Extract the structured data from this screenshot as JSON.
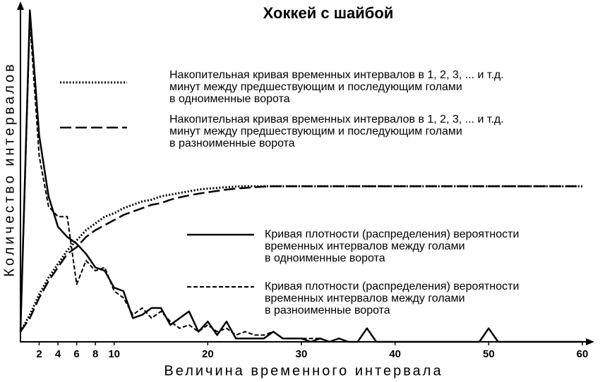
{
  "chart_data": {
    "type": "line",
    "title": "Хоккей с шайбой",
    "x_label": "Величина временного интервала",
    "y_label": "Количество интервалов",
    "xlim": [
      0,
      60
    ],
    "ylim": [
      0,
      100
    ],
    "xticks": [
      2,
      4,
      6,
      8,
      10,
      20,
      30,
      40,
      50,
      60
    ],
    "x": [
      0,
      1,
      2,
      3,
      4,
      5,
      6,
      7,
      8,
      9,
      10,
      11,
      12,
      13,
      14,
      15,
      16,
      17,
      18,
      19,
      20,
      21,
      22,
      23,
      24,
      25,
      26,
      27,
      28,
      29,
      30,
      31,
      32,
      33,
      34,
      35,
      36,
      37,
      38,
      39,
      40,
      41,
      42,
      43,
      44,
      45,
      46,
      47,
      48,
      49,
      50,
      51,
      52,
      53,
      54,
      55,
      56,
      57,
      58,
      59,
      60
    ],
    "series": [
      {
        "name": "Накопительная кривая временных интервалов в 1, 2, 3, ... и т.д.\nминут между предшествующим и последующим голами\nв одноименные ворота",
        "color": "#000000",
        "style": "dotted",
        "values": [
          3,
          8,
          14,
          19,
          23,
          27,
          30,
          33,
          35,
          37,
          38,
          39.5,
          40.5,
          41.5,
          42,
          43,
          43.5,
          44,
          44.5,
          45,
          45.3,
          45.5,
          45.7,
          45.9,
          46,
          46,
          46,
          46,
          46,
          46,
          46,
          46,
          46,
          46,
          46,
          46,
          46,
          46,
          46,
          46,
          46,
          46,
          46,
          46,
          46,
          46,
          46,
          46,
          46,
          46,
          46,
          46,
          46,
          46,
          46,
          46,
          46,
          46,
          46,
          46,
          46
        ]
      },
      {
        "name": "Накопительная кривая временных интервалов в 1, 2, 3, ... и т.д.\nминут между предшествующим и последующим голами\nв разноименные ворота",
        "color": "#000000",
        "style": "longdash",
        "values": [
          3,
          7,
          13,
          18,
          22,
          26,
          28,
          31,
          33,
          34.5,
          36,
          37.5,
          38.5,
          39.5,
          40.5,
          41,
          42,
          42.7,
          43.3,
          43.8,
          44.2,
          44.6,
          45,
          45.3,
          45.5,
          45.7,
          45.9,
          46,
          46,
          46,
          46,
          46,
          46,
          46,
          46,
          46,
          46,
          46,
          46,
          46,
          46,
          46,
          46,
          46,
          46,
          46,
          46,
          46,
          46,
          46,
          46,
          46,
          46,
          46,
          46,
          46,
          46,
          46,
          46,
          46,
          46
        ]
      },
      {
        "name": "Кривая плотности (распределения) вероятности\nвременных интервалов между голами\nв одноименные ворота",
        "color": "#000000",
        "style": "solid",
        "values": [
          3,
          98,
          61,
          43,
          34,
          31,
          29,
          26,
          22,
          21,
          16,
          15,
          7,
          8,
          10,
          10,
          5,
          7,
          9,
          3,
          6,
          2,
          6,
          1,
          1,
          1,
          1,
          3,
          1,
          1,
          1,
          0,
          1,
          0,
          1,
          0,
          0,
          4,
          0,
          0,
          0,
          0,
          0,
          0,
          0,
          0,
          0,
          0,
          0,
          0,
          4,
          0,
          0,
          0,
          0,
          0,
          0,
          0,
          0,
          0,
          0
        ]
      },
      {
        "name": "Кривая плотности (распределения) вероятности\nвременных интервалов между голами\nв разноименные ворота",
        "color": "#000000",
        "style": "dashed",
        "values": [
          3,
          95,
          55,
          40,
          37,
          37,
          17,
          24,
          21,
          22,
          15,
          13,
          8,
          10,
          7,
          9,
          6,
          4,
          5,
          3,
          5,
          3,
          4,
          2,
          3,
          2,
          2,
          3,
          1,
          1,
          1,
          1,
          1,
          0,
          0,
          0,
          0,
          0,
          0,
          0,
          0,
          0,
          0,
          0,
          0,
          0,
          0,
          0,
          0,
          0,
          0,
          0,
          0,
          0,
          0,
          0,
          0,
          0,
          0,
          0,
          0
        ]
      }
    ]
  }
}
